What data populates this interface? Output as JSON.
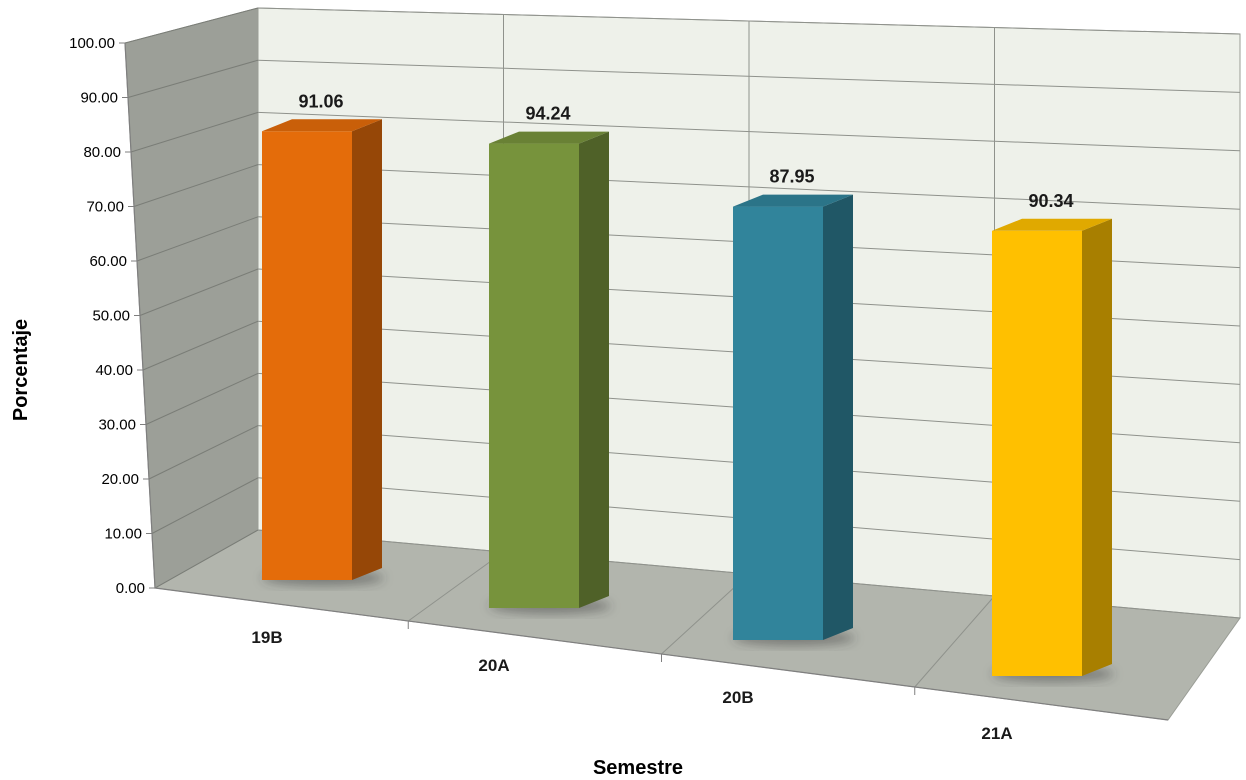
{
  "chart_data": {
    "type": "bar",
    "style": "3d-column",
    "categories": [
      "19B",
      "20A",
      "20B",
      "21A"
    ],
    "values": [
      91.06,
      94.24,
      87.95,
      90.34
    ],
    "value_labels": [
      "91.06",
      "94.24",
      "87.95",
      "90.34"
    ],
    "colors": [
      "#e46c0a",
      "#77933c",
      "#31849b",
      "#ffc000"
    ],
    "xlabel": "Semestre",
    "ylabel": "Porcentaje",
    "ylim": [
      0,
      100
    ],
    "yticks": [
      "0.00",
      "10.00",
      "20.00",
      "30.00",
      "40.00",
      "50.00",
      "60.00",
      "70.00",
      "80.00",
      "90.00",
      "100.00"
    ],
    "grid": true
  }
}
